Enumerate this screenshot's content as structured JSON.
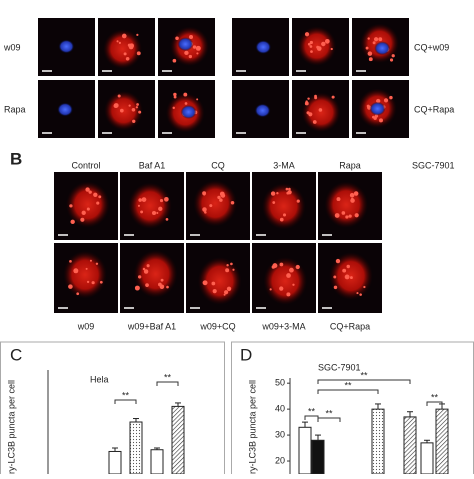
{
  "panel_a": {
    "row_labels_left": [
      "w09",
      "Rapa"
    ],
    "row_labels_right": [
      "CQ+w09",
      "CQ+Rapa"
    ]
  },
  "panel_b": {
    "label": "B",
    "cell_line": "SGC-7901",
    "top_labels": [
      "Control",
      "Baf A1",
      "CQ",
      "3-MA",
      "Rapa"
    ],
    "bottom_labels": [
      "w09",
      "w09+Baf A1",
      "w09+CQ",
      "w09+3-MA",
      "CQ+Rapa"
    ]
  },
  "panel_c": {
    "label": "C",
    "title": "Hela",
    "y_label": "ry-LC3B puncta per cell",
    "ylim": [
      10,
      70
    ],
    "values": [
      23,
      40,
      24,
      49
    ],
    "errors": [
      2,
      2,
      1,
      2
    ],
    "significance": [
      "**",
      "**"
    ]
  },
  "panel_d": {
    "label": "D",
    "title": "SGC-7901",
    "y_label": "ry-LC3B puncta per cell",
    "ylim": [
      15,
      52
    ],
    "yticks": [
      20,
      30,
      40,
      50
    ],
    "values": [
      33,
      28,
      40,
      37,
      27,
      40
    ],
    "errors": [
      2,
      2,
      2,
      2,
      1,
      2
    ],
    "significance": [
      "**",
      "**",
      "**",
      "**",
      "**"
    ]
  }
}
